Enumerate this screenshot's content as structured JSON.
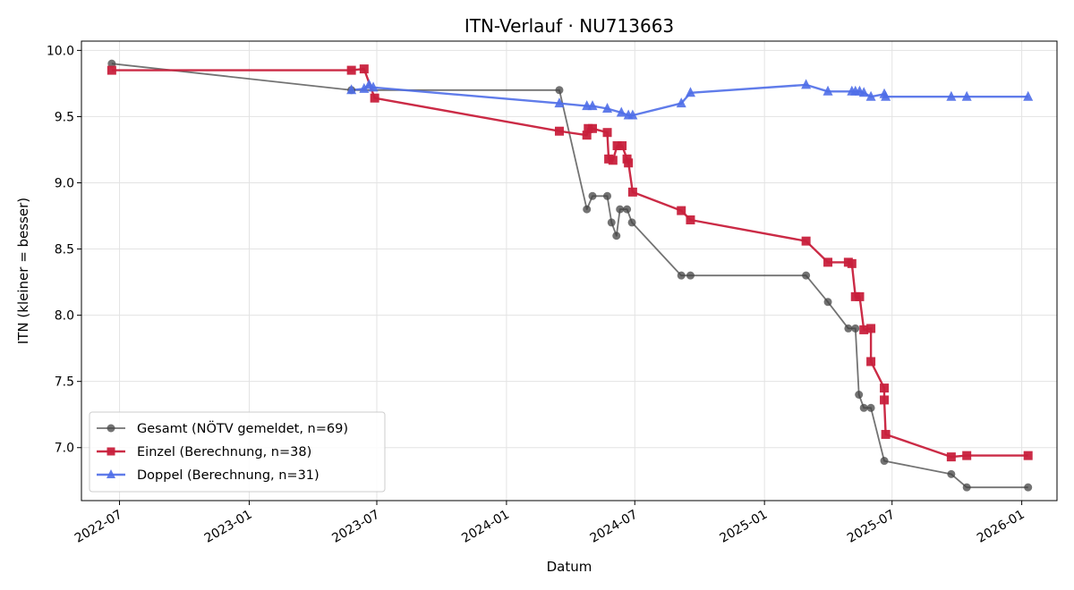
{
  "chart_data": {
    "type": "line",
    "title": "ITN-Verlauf · NU713663",
    "xlabel": "Datum",
    "ylabel": "ITN  (kleiner = besser)",
    "x_ticks": [
      "2022-07",
      "2023-01",
      "2023-07",
      "2024-01",
      "2024-07",
      "2025-01",
      "2025-07",
      "2026-01"
    ],
    "y_ticks": [
      "7.0",
      "7.5",
      "8.0",
      "8.5",
      "9.0",
      "9.5",
      "10.0"
    ],
    "xlim": [
      "2022-05-08",
      "2026-02-20"
    ],
    "ylim": [
      6.6,
      10.07
    ],
    "grid": true,
    "legend_position": "lower-left",
    "series": [
      {
        "name": "Gesamt (NÖTV gemeldet, n=69)",
        "color": "#444444",
        "marker": "circle",
        "points": [
          [
            "2022-06-20",
            9.9
          ],
          [
            "2023-05-26",
            9.7
          ],
          [
            "2024-03-16",
            9.7
          ],
          [
            "2024-04-24",
            8.8
          ],
          [
            "2024-05-02",
            8.9
          ],
          [
            "2024-05-23",
            8.9
          ],
          [
            "2024-05-29",
            8.7
          ],
          [
            "2024-06-05",
            8.6
          ],
          [
            "2024-06-10",
            8.8
          ],
          [
            "2024-06-20",
            8.8
          ],
          [
            "2024-06-27",
            8.7
          ],
          [
            "2024-09-05",
            8.3
          ],
          [
            "2024-09-18",
            8.3
          ],
          [
            "2025-03-01",
            8.3
          ],
          [
            "2025-04-01",
            8.1
          ],
          [
            "2025-04-30",
            7.9
          ],
          [
            "2025-05-10",
            7.9
          ],
          [
            "2025-05-15",
            7.4
          ],
          [
            "2025-05-22",
            7.3
          ],
          [
            "2025-06-01",
            7.3
          ],
          [
            "2025-06-20",
            6.9
          ],
          [
            "2025-09-23",
            6.8
          ],
          [
            "2025-10-15",
            6.7
          ],
          [
            "2026-01-10",
            6.7
          ]
        ]
      },
      {
        "name": "Einzel (Berechnung, n=38)",
        "color": "#c8203c",
        "marker": "square",
        "points": [
          [
            "2022-06-20",
            9.85
          ],
          [
            "2023-05-26",
            9.85
          ],
          [
            "2023-06-13",
            9.86
          ],
          [
            "2023-06-28",
            9.64
          ],
          [
            "2024-03-16",
            9.39
          ],
          [
            "2024-04-24",
            9.36
          ],
          [
            "2024-04-26",
            9.41
          ],
          [
            "2024-05-02",
            9.41
          ],
          [
            "2024-05-23",
            9.38
          ],
          [
            "2024-05-25",
            9.18
          ],
          [
            "2024-05-31",
            9.17
          ],
          [
            "2024-06-06",
            9.28
          ],
          [
            "2024-06-13",
            9.28
          ],
          [
            "2024-06-20",
            9.18
          ],
          [
            "2024-06-22",
            9.15
          ],
          [
            "2024-06-28",
            8.93
          ],
          [
            "2024-09-05",
            8.79
          ],
          [
            "2024-09-18",
            8.72
          ],
          [
            "2025-03-01",
            8.56
          ],
          [
            "2025-04-01",
            8.4
          ],
          [
            "2025-04-30",
            8.4
          ],
          [
            "2025-05-05",
            8.39
          ],
          [
            "2025-05-10",
            8.14
          ],
          [
            "2025-05-16",
            8.14
          ],
          [
            "2025-05-22",
            7.89
          ],
          [
            "2025-06-01",
            7.9
          ],
          [
            "2025-06-01",
            7.65
          ],
          [
            "2025-06-20",
            7.45
          ],
          [
            "2025-06-20",
            7.36
          ],
          [
            "2025-06-22",
            7.1
          ],
          [
            "2025-09-23",
            6.93
          ],
          [
            "2025-10-15",
            6.94
          ],
          [
            "2026-01-10",
            6.94
          ]
        ]
      },
      {
        "name": "Doppel (Berechnung, n=31)",
        "color": "#4f6ee8",
        "marker": "triangle",
        "points": [
          [
            "2023-05-26",
            9.7
          ],
          [
            "2023-06-13",
            9.71
          ],
          [
            "2023-06-20",
            9.74
          ],
          [
            "2023-06-26",
            9.72
          ],
          [
            "2024-03-16",
            9.6
          ],
          [
            "2024-04-24",
            9.58
          ],
          [
            "2024-05-02",
            9.58
          ],
          [
            "2024-05-23",
            9.56
          ],
          [
            "2024-06-12",
            9.53
          ],
          [
            "2024-06-22",
            9.51
          ],
          [
            "2024-06-28",
            9.51
          ],
          [
            "2024-09-05",
            9.6
          ],
          [
            "2024-09-18",
            9.68
          ],
          [
            "2025-03-01",
            9.74
          ],
          [
            "2025-04-01",
            9.69
          ],
          [
            "2025-05-05",
            9.69
          ],
          [
            "2025-05-10",
            9.69
          ],
          [
            "2025-05-16",
            9.69
          ],
          [
            "2025-05-22",
            9.68
          ],
          [
            "2025-06-01",
            9.65
          ],
          [
            "2025-06-20",
            9.67
          ],
          [
            "2025-06-22",
            9.65
          ],
          [
            "2025-09-23",
            9.65
          ],
          [
            "2025-10-15",
            9.65
          ],
          [
            "2026-01-10",
            9.65
          ]
        ]
      }
    ]
  }
}
